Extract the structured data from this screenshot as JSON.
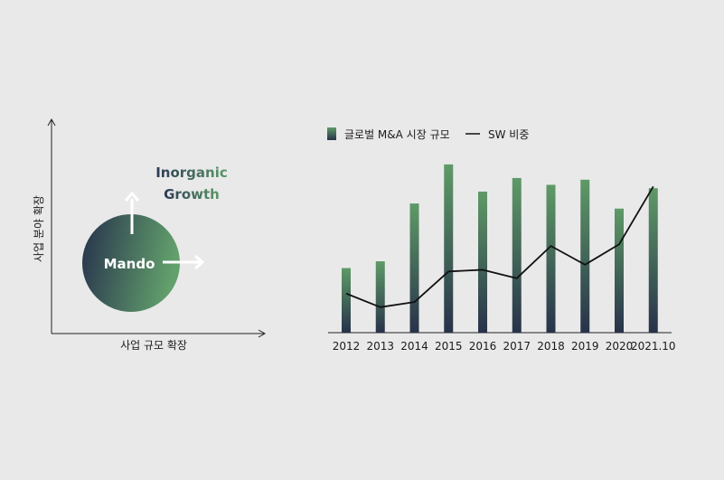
{
  "quadrant": {
    "y_axis_label": "사업 분야 확장",
    "x_axis_label": "사업 규모 확장",
    "circle_label": "Mando",
    "headline_line1": "Inorganic",
    "headline_line2": "Growth"
  },
  "colors": {
    "background": "#e9e9e9",
    "bar_top": "#5f9a67",
    "bar_bottom": "#27324a",
    "line": "#111111",
    "circle_dark": "#2b3a57",
    "circle_light": "#5f9a6a"
  },
  "chart_data": {
    "type": "bar",
    "categories": [
      "2012",
      "2013",
      "2014",
      "2015",
      "2016",
      "2017",
      "2018",
      "2019",
      "2020",
      "2021.10"
    ],
    "series": [
      {
        "name": "글로벌 M&A 시장 규모",
        "type": "bar",
        "values": [
          38,
          42,
          76,
          99,
          83,
          91,
          87,
          90,
          73,
          85
        ]
      },
      {
        "name": "SW 비중",
        "type": "line",
        "values": [
          23,
          15,
          18,
          36,
          37,
          32,
          51,
          40,
          52,
          86
        ]
      }
    ],
    "ylim": [
      0,
      100
    ],
    "legend_position": "top",
    "grid": false
  }
}
